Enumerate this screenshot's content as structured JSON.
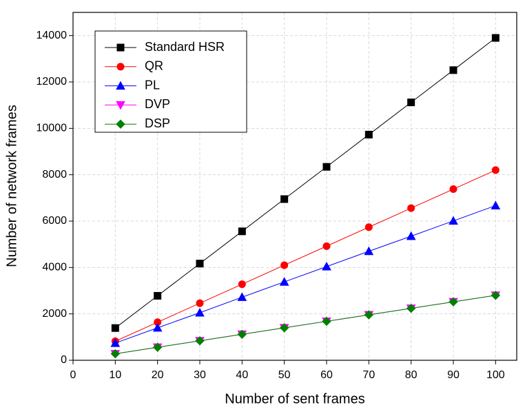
{
  "chart_data": {
    "type": "line",
    "x_label": "Number of sent frames",
    "y_label": "Number of network frames",
    "x": [
      10,
      20,
      30,
      40,
      50,
      60,
      70,
      80,
      90,
      100
    ],
    "series": [
      {
        "name": "Standard HSR",
        "color": "#000000",
        "marker": "square",
        "values": [
          1390,
          2780,
          4170,
          5560,
          6950,
          8340,
          9730,
          11120,
          12510,
          13900
        ]
      },
      {
        "name": "QR",
        "color": "#ff0000",
        "marker": "circle",
        "values": [
          820,
          1640,
          2460,
          3280,
          4100,
          4920,
          5740,
          6560,
          7380,
          8200
        ]
      },
      {
        "name": "PL",
        "color": "#0000ff",
        "marker": "triangle-up",
        "values": [
          740,
          1400,
          2050,
          2720,
          3380,
          4040,
          4700,
          5350,
          6010,
          6670
        ]
      },
      {
        "name": "DVP",
        "color": "#ff00ff",
        "marker": "triangle-down",
        "values": [
          280,
          560,
          840,
          1120,
          1400,
          1680,
          1960,
          2240,
          2520,
          2800
        ]
      },
      {
        "name": "DSP",
        "color": "#008000",
        "marker": "diamond",
        "values": [
          280,
          560,
          840,
          1120,
          1400,
          1680,
          1960,
          2240,
          2520,
          2800
        ]
      }
    ],
    "xlim": [
      0,
      105
    ],
    "xticks": [
      0,
      10,
      20,
      30,
      40,
      50,
      60,
      70,
      80,
      90,
      100
    ],
    "ylim": [
      0,
      15000
    ],
    "yticks": [
      0,
      2000,
      4000,
      6000,
      8000,
      10000,
      12000,
      14000
    ],
    "grid": true,
    "legend": "upper-left"
  }
}
